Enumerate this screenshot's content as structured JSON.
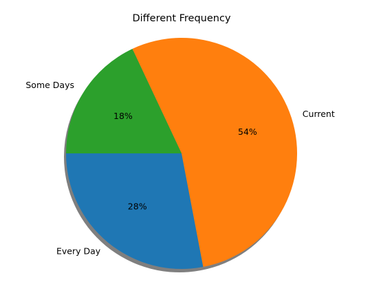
{
  "chart_data": {
    "type": "pie",
    "title": "Different Frequency",
    "categories": [
      "Every Day",
      "Current",
      "Some Days"
    ],
    "values": [
      28,
      54,
      18
    ],
    "value_labels": [
      "28%",
      "54%",
      "18%"
    ],
    "colors": [
      "#1f77b4",
      "#ff7f0e",
      "#2ca02c"
    ],
    "start_angle_deg": 180,
    "direction": "counterclockwise",
    "shadow": true,
    "legend": "none"
  }
}
